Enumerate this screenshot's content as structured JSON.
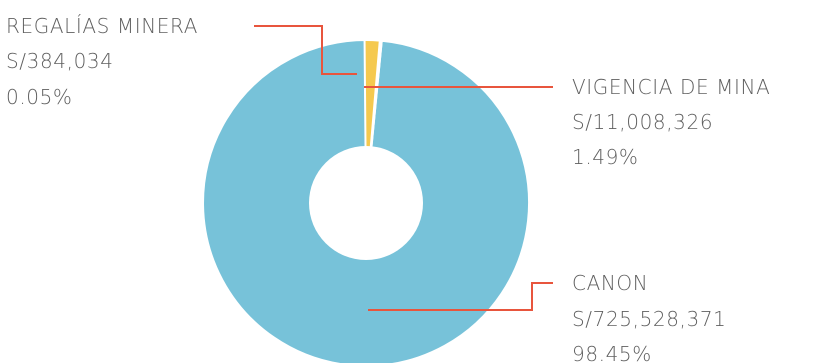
{
  "chart_data": {
    "type": "pie",
    "variant": "donut",
    "title": "",
    "slices": [
      {
        "key": "canon",
        "label": "CANON",
        "amount": "S/725,528,371",
        "percent_label": "98.45%",
        "value": 98.45,
        "color": "#77c2d9"
      },
      {
        "key": "regalias",
        "label": "REGALÍAS MINERA",
        "amount": "S/384,034",
        "percent_label": "0.05%",
        "value": 0.05,
        "color": "#f5c94f"
      },
      {
        "key": "vigencia",
        "label": "VIGENCIA DE MINA",
        "amount": "S/11,008,326",
        "percent_label": "1.49%",
        "value": 1.49,
        "color": "#f5c94f"
      }
    ],
    "leader_color": "#e8553d",
    "start_angle_deg": 0,
    "direction": "counterclockwise"
  }
}
